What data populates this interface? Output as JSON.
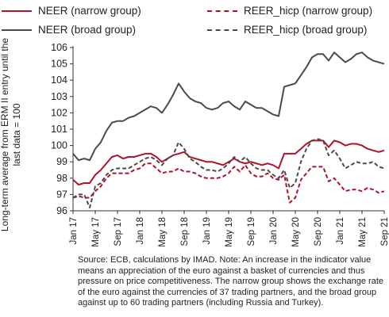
{
  "chart_data": {
    "type": "line",
    "ylabel": "Long-term average from ERM II entry until the last data = 100",
    "ylim": [
      96,
      106
    ],
    "yticks": [
      "96",
      "97",
      "98",
      "99",
      "100",
      "101",
      "102",
      "103",
      "104",
      "105",
      "106"
    ],
    "x_ticks": [
      "Jan 17",
      "May 17",
      "Sep 17",
      "Jan 18",
      "May 18",
      "Sep 18",
      "Jan 19",
      "May 19",
      "Sep 19",
      "Jan 20",
      "May 20",
      "Sep 20",
      "Jan 21",
      "May 21",
      "Sep 21"
    ],
    "x_months": [
      "2017-01",
      "2017-02",
      "2017-03",
      "2017-04",
      "2017-05",
      "2017-06",
      "2017-07",
      "2017-08",
      "2017-09",
      "2017-10",
      "2017-11",
      "2017-12",
      "2018-01",
      "2018-02",
      "2018-03",
      "2018-04",
      "2018-05",
      "2018-06",
      "2018-07",
      "2018-08",
      "2018-09",
      "2018-10",
      "2018-11",
      "2018-12",
      "2019-01",
      "2019-02",
      "2019-03",
      "2019-04",
      "2019-05",
      "2019-06",
      "2019-07",
      "2019-08",
      "2019-09",
      "2019-10",
      "2019-11",
      "2019-12",
      "2020-01",
      "2020-02",
      "2020-03",
      "2020-04",
      "2020-05",
      "2020-06",
      "2020-07",
      "2020-08",
      "2020-09",
      "2020-10",
      "2020-11",
      "2020-12",
      "2021-01",
      "2021-02",
      "2021-03",
      "2021-04",
      "2021-05",
      "2021-06",
      "2021-07",
      "2021-08",
      "2021-09"
    ],
    "grid": false,
    "legend": "top",
    "series": [
      {
        "name": "NEER (narrow group)",
        "color": "#b0122a",
        "dash": "solid",
        "values": [
          97.9,
          97.6,
          97.7,
          97.7,
          98.2,
          98.5,
          98.9,
          99.3,
          99.4,
          99.2,
          99.3,
          99.3,
          99.4,
          99.5,
          99.5,
          99.3,
          99.0,
          99.2,
          99.4,
          99.5,
          99.6,
          99.3,
          99.2,
          99.1,
          99.0,
          99.0,
          98.9,
          98.8,
          99.0,
          99.2,
          99.0,
          98.9,
          99.0,
          98.9,
          98.8,
          98.9,
          98.8,
          98.6,
          99.5,
          99.5,
          99.5,
          99.8,
          100.1,
          100.3,
          100.3,
          100.3,
          99.9,
          100.3,
          100.2,
          100.0,
          100.1,
          100.1,
          100.0,
          99.8,
          99.7,
          99.6,
          99.7
        ]
      },
      {
        "name": "REER_hicp (narrow group)",
        "color": "#b0122a",
        "dash": "dashed",
        "values": [
          96.8,
          96.9,
          96.8,
          96.8,
          97.2,
          97.5,
          98.0,
          98.3,
          98.3,
          98.3,
          98.3,
          98.5,
          98.6,
          98.9,
          98.9,
          98.6,
          98.3,
          98.4,
          98.4,
          98.6,
          98.4,
          98.4,
          98.3,
          98.1,
          98.0,
          98.0,
          98.0,
          98.1,
          98.3,
          98.7,
          98.4,
          98.8,
          98.3,
          98.1,
          98.1,
          98.3,
          98.0,
          97.9,
          98.2,
          96.5,
          96.8,
          97.9,
          98.3,
          98.7,
          98.7,
          98.7,
          97.8,
          98.0,
          97.6,
          97.2,
          97.3,
          97.3,
          97.2,
          97.4,
          97.3,
          97.1,
          97.2
        ]
      },
      {
        "name": "NEER (broad group)",
        "color": "#4a4a4a",
        "dash": "solid",
        "values": [
          99.5,
          99.1,
          99.2,
          99.1,
          99.8,
          100.2,
          100.9,
          101.4,
          101.5,
          101.5,
          101.7,
          101.8,
          102.0,
          102.2,
          102.4,
          102.3,
          102.0,
          102.5,
          103.1,
          103.8,
          103.3,
          102.9,
          102.7,
          102.6,
          102.3,
          102.2,
          102.3,
          102.6,
          102.7,
          102.4,
          102.2,
          102.7,
          102.5,
          102.3,
          102.3,
          102.1,
          101.9,
          101.8,
          103.6,
          103.7,
          103.8,
          104.3,
          104.8,
          105.4,
          105.6,
          105.6,
          105.2,
          105.7,
          105.4,
          105.1,
          105.3,
          105.6,
          105.7,
          105.4,
          105.2,
          105.1,
          105.0
        ]
      },
      {
        "name": "REER_hicp (broad group)",
        "color": "#4a4a4a",
        "dash": "dashed",
        "values": [
          96.8,
          97.0,
          97.0,
          96.2,
          97.5,
          97.7,
          98.2,
          98.5,
          98.6,
          98.6,
          98.6,
          98.8,
          99.0,
          99.2,
          99.3,
          99.1,
          98.8,
          99.2,
          99.4,
          100.2,
          99.8,
          99.2,
          99.0,
          98.7,
          98.5,
          98.5,
          98.4,
          98.6,
          98.9,
          99.3,
          99.0,
          99.3,
          98.9,
          98.6,
          98.5,
          98.5,
          98.2,
          98.0,
          98.5,
          97.4,
          97.7,
          99.0,
          99.8,
          100.3,
          100.4,
          100.3,
          99.4,
          99.7,
          99.2,
          98.6,
          98.8,
          99.0,
          98.9,
          98.9,
          99.0,
          98.7,
          98.6
        ]
      }
    ]
  },
  "source_note": "Source: ECB, calculations by IMAD. Note: An increase in the indicator value means an appreciation of the euro against a basket of currencies and thus pressure on price competitiveness. The narrow group shows the exchange rate of the euro against the currencies of 37 trading partners, and the broad group against up to 60 trading partners (including Russia and Turkey)."
}
